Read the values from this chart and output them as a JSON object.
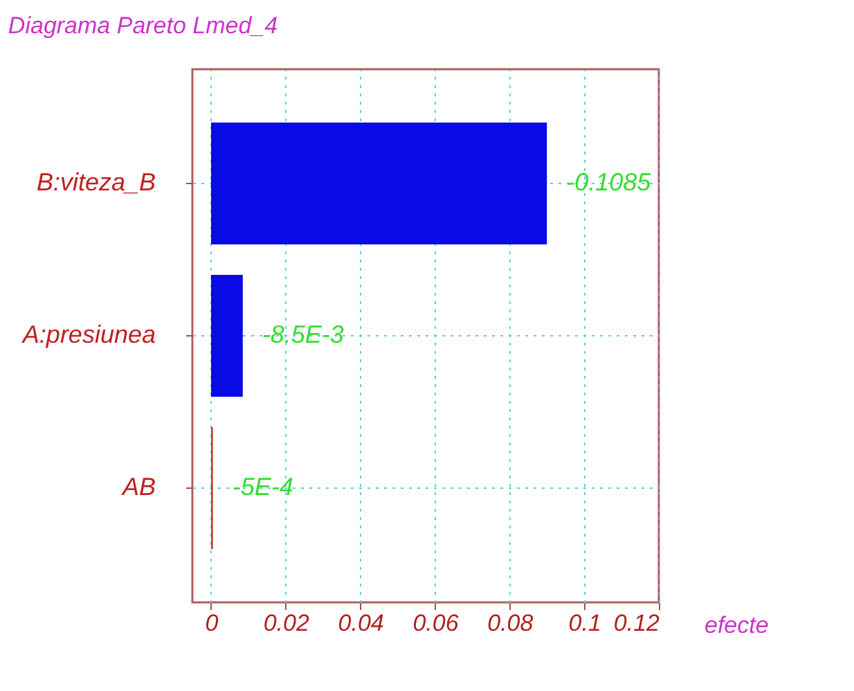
{
  "chart_data": {
    "type": "bar",
    "orientation": "horizontal",
    "title": "Diagrama Pareto Lmed_4",
    "xlabel": "efecte",
    "categories": [
      "B:viteza_B",
      "A:presiunea",
      "AB"
    ],
    "values": [
      0.09,
      0.0085,
      0.0005
    ],
    "colors": [
      "#0a0ae6",
      "#0a0ae6",
      "#d03a2a"
    ],
    "annotations": [
      {
        "text": "-0.1085",
        "x": 0.09,
        "y": "B:viteza_B"
      },
      {
        "text": "-8.5E-3",
        "x": 0.0085,
        "y": "A:presiunea"
      },
      {
        "text": "-5E-4",
        "x": 0.0005,
        "y": "AB"
      }
    ],
    "xlim": [
      -0.005,
      0.12
    ],
    "xticks": [
      0,
      0.02,
      0.04,
      0.06,
      0.08,
      0.1,
      0.12
    ],
    "grid": true
  }
}
